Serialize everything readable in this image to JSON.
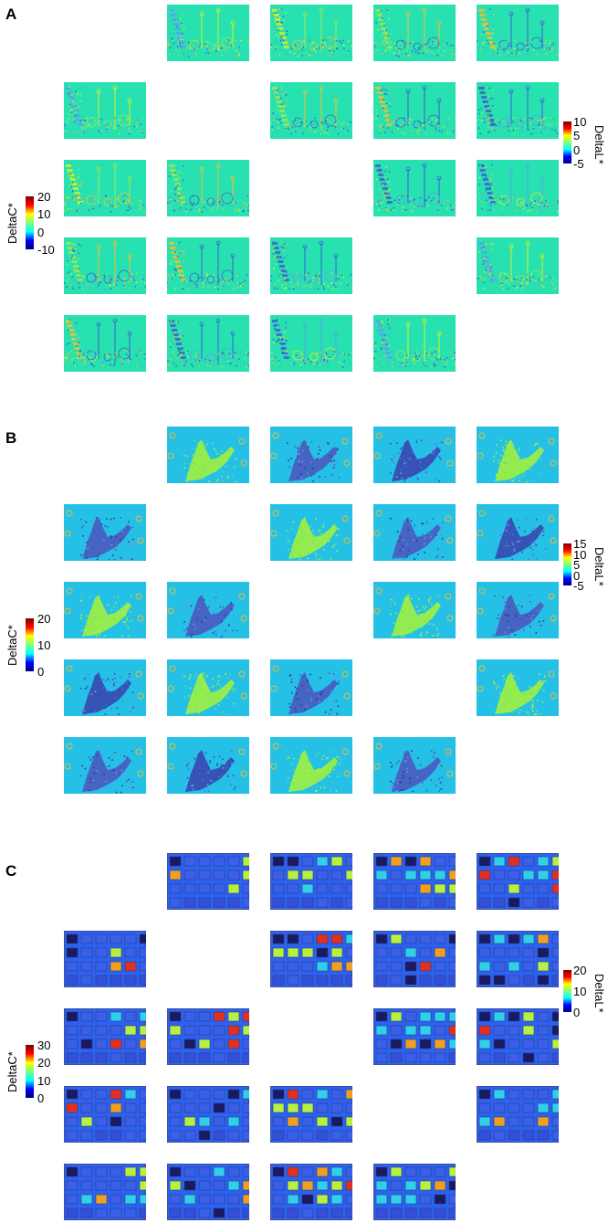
{
  "panels": [
    {
      "label": "A",
      "style": "a",
      "deltaL": {
        "label": "DeltaL*",
        "ticks": [
          "10",
          "5",
          "0",
          "-5"
        ]
      },
      "deltaC": {
        "label": "DeltaC*",
        "ticks": [
          "20",
          "10",
          "0",
          "-10"
        ]
      }
    },
    {
      "label": "B",
      "style": "b",
      "deltaL": {
        "label": "DeltaL*",
        "ticks": [
          "15",
          "10",
          "5",
          "0",
          "-5"
        ]
      },
      "deltaC": {
        "label": "DeltaC*",
        "ticks": [
          "20",
          "10",
          "0"
        ]
      }
    },
    {
      "label": "C",
      "style": "c",
      "deltaL": {
        "label": "DeltaL*",
        "ticks": [
          "20",
          "10",
          "0"
        ]
      },
      "deltaC": {
        "label": "DeltaC*",
        "ticks": [
          "30",
          "20",
          "10",
          "0"
        ]
      }
    }
  ],
  "colors": {
    "panel_a_background": "#27e2b0",
    "panel_b_background": "#25c0e6",
    "panel_c_background": "#2c62ef",
    "colormap": "jet"
  },
  "grid": {
    "rows": 5,
    "cols": 5,
    "empty_cells": [
      [
        0,
        0
      ],
      [
        1,
        1
      ],
      [
        2,
        2
      ],
      [
        3,
        3
      ],
      [
        4,
        4
      ]
    ]
  }
}
